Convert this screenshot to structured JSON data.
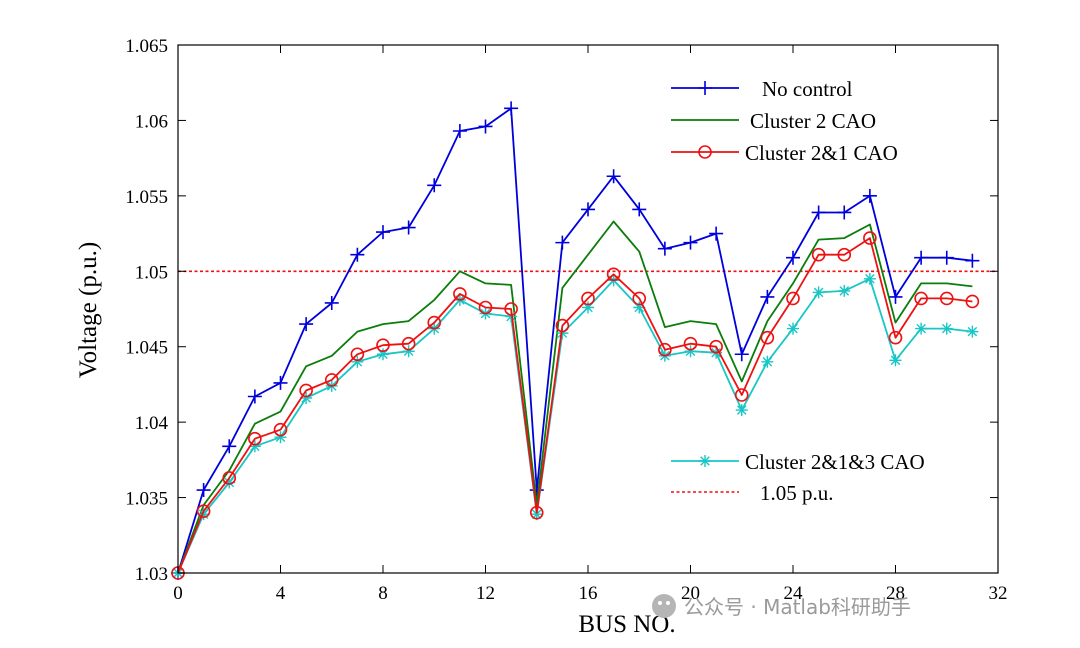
{
  "chart_data": {
    "type": "line",
    "title": "",
    "xlabel": "BUS NO.",
    "ylabel": "Voltage (p.u.)",
    "xlim": [
      0,
      32
    ],
    "ylim": [
      1.03,
      1.065
    ],
    "xticks": [
      0,
      4,
      8,
      12,
      16,
      20,
      24,
      28,
      32
    ],
    "xtick_labels": [
      "0",
      "4",
      "8",
      "12",
      "16",
      "20",
      "24",
      "28",
      "32"
    ],
    "yticks": [
      1.03,
      1.035,
      1.04,
      1.045,
      1.05,
      1.055,
      1.06,
      1.065
    ],
    "ytick_labels": [
      "1.03",
      "1.035",
      "1.04",
      "1.045",
      "1.05",
      "1.055",
      "1.06",
      "1.065"
    ],
    "grid": false,
    "x": [
      0,
      1,
      2,
      3,
      4,
      5,
      6,
      7,
      8,
      9,
      10,
      11,
      12,
      13,
      14,
      15,
      16,
      17,
      18,
      19,
      20,
      21,
      22,
      23,
      24,
      25,
      26,
      27,
      28,
      29,
      30,
      31
    ],
    "series": [
      {
        "name": "No control",
        "color": "#0000dd",
        "marker": "plus",
        "values": [
          1.03,
          1.0355,
          1.0384,
          1.0417,
          1.0426,
          1.0465,
          1.0479,
          1.0511,
          1.0526,
          1.0529,
          1.0557,
          1.0593,
          1.0596,
          1.0608,
          1.0355,
          1.0519,
          1.0541,
          1.0563,
          1.0541,
          1.0515,
          1.0519,
          1.0525,
          1.0445,
          1.0483,
          1.0509,
          1.0539,
          1.0539,
          1.055,
          1.0483,
          1.0509,
          1.0509,
          1.0507
        ]
      },
      {
        "name": "Cluster 2 CAO",
        "color": "#0a7d0a",
        "marker": "none",
        "values": [
          1.03,
          1.0345,
          1.0368,
          1.0399,
          1.0407,
          1.0437,
          1.0444,
          1.046,
          1.0465,
          1.0467,
          1.0481,
          1.05,
          1.0492,
          1.0491,
          1.0345,
          1.0489,
          1.0511,
          1.0533,
          1.0513,
          1.0463,
          1.0467,
          1.0465,
          1.0427,
          1.0467,
          1.0492,
          1.0521,
          1.0522,
          1.0531,
          1.0466,
          1.0492,
          1.0492,
          1.049
        ]
      },
      {
        "name": "Cluster 2&1 CAO",
        "color": "#ee1111",
        "marker": "circle",
        "values": [
          1.03,
          1.0341,
          1.0363,
          1.0389,
          1.0395,
          1.0421,
          1.0428,
          1.0445,
          1.0451,
          1.0452,
          1.0466,
          1.0485,
          1.0476,
          1.0475,
          1.034,
          1.0464,
          1.0482,
          1.0498,
          1.0482,
          1.0448,
          1.0452,
          1.045,
          1.0418,
          1.0456,
          1.0482,
          1.0511,
          1.0511,
          1.0522,
          1.0456,
          1.0482,
          1.0482,
          1.048
        ]
      },
      {
        "name": "Cluster 2&1&3 CAO",
        "color": "#19c6c6",
        "marker": "star",
        "values": [
          1.03,
          1.0339,
          1.036,
          1.0384,
          1.039,
          1.0416,
          1.0424,
          1.044,
          1.0445,
          1.0447,
          1.0462,
          1.0481,
          1.0472,
          1.047,
          1.0339,
          1.0459,
          1.0476,
          1.0494,
          1.0476,
          1.0444,
          1.0447,
          1.0446,
          1.0408,
          1.044,
          1.0462,
          1.0486,
          1.0487,
          1.0495,
          1.0441,
          1.0462,
          1.0462,
          1.046
        ]
      }
    ],
    "reference_line": {
      "name": "1.05 p.u.",
      "value": 1.05,
      "color": "#ee1111",
      "style": "dotted"
    },
    "legend_top": [
      "No control",
      "Cluster 2 CAO",
      "Cluster 2&1 CAO"
    ],
    "legend_bottom": [
      "Cluster 2&1&3 CAO",
      "1.05 p.u."
    ]
  },
  "legend": {
    "no_control": "No control",
    "cluster2": "Cluster 2 CAO",
    "cluster21": "Cluster 2&1 CAO",
    "cluster213": "Cluster 2&1&3 CAO",
    "ref": "1.05 p.u."
  },
  "watermark": "公众号 · Matlab科研助手"
}
